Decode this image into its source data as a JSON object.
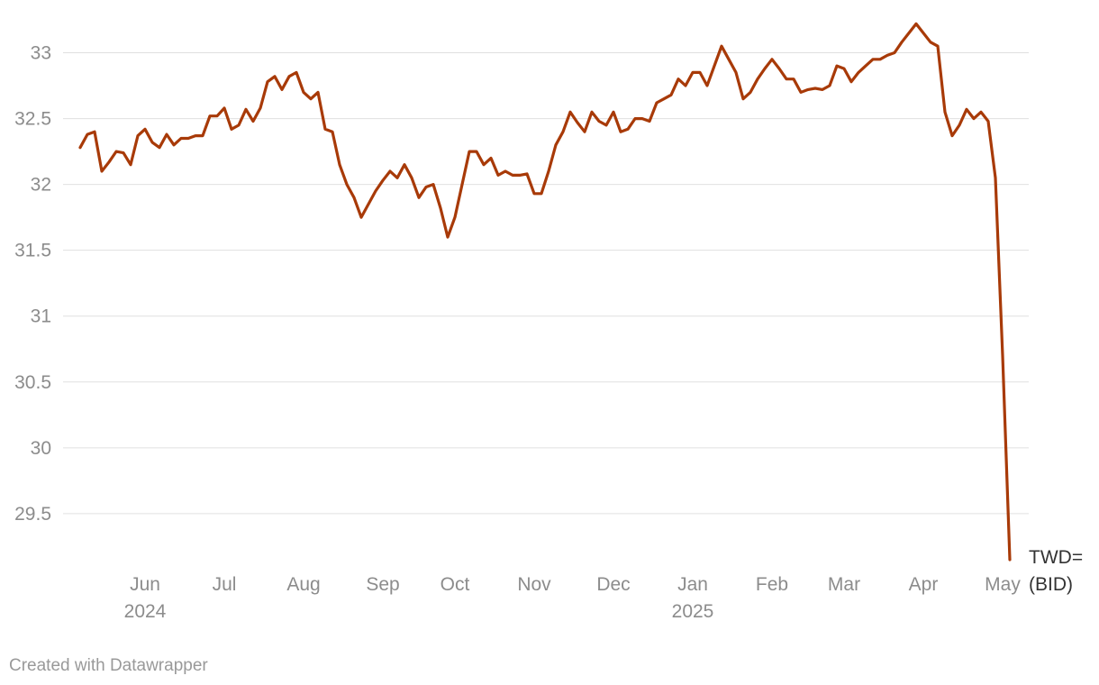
{
  "chart_data": {
    "type": "line",
    "credit": "Created with Datawrapper",
    "categories": [
      null,
      null,
      null,
      null,
      null,
      null,
      null,
      null,
      null,
      "Jun 2024",
      null,
      null,
      null,
      null,
      null,
      null,
      null,
      null,
      null,
      null,
      "Jul",
      null,
      null,
      null,
      null,
      null,
      null,
      null,
      null,
      null,
      null,
      "Aug",
      null,
      null,
      null,
      null,
      null,
      null,
      null,
      null,
      null,
      null,
      "Sep",
      null,
      null,
      null,
      null,
      null,
      null,
      null,
      null,
      null,
      "Oct",
      null,
      null,
      null,
      null,
      null,
      null,
      null,
      null,
      null,
      null,
      "Nov",
      null,
      null,
      null,
      null,
      null,
      null,
      null,
      null,
      null,
      null,
      "Dec",
      null,
      null,
      null,
      null,
      null,
      null,
      null,
      null,
      null,
      null,
      "Jan 2025",
      null,
      null,
      null,
      null,
      null,
      null,
      null,
      null,
      null,
      null,
      "Feb",
      null,
      null,
      null,
      null,
      null,
      null,
      null,
      null,
      null,
      "Mar",
      null,
      null,
      null,
      null,
      null,
      null,
      null,
      null,
      null,
      null,
      "Apr",
      null,
      null,
      null,
      null,
      null,
      null,
      null,
      null,
      null,
      null,
      "May",
      null
    ],
    "series": [
      {
        "name": "TWD= (BID)",
        "color": "#a83a08",
        "values": [
          32.28,
          32.38,
          32.4,
          32.1,
          32.17,
          32.25,
          32.24,
          32.15,
          32.37,
          32.42,
          32.32,
          32.28,
          32.38,
          32.3,
          32.35,
          32.35,
          32.37,
          32.37,
          32.52,
          32.52,
          32.58,
          32.42,
          32.45,
          32.57,
          32.48,
          32.58,
          32.78,
          32.82,
          32.72,
          32.82,
          32.85,
          32.7,
          32.65,
          32.7,
          32.42,
          32.4,
          32.15,
          32.0,
          31.9,
          31.75,
          31.85,
          31.95,
          32.03,
          32.1,
          32.05,
          32.15,
          32.05,
          31.9,
          31.98,
          32.0,
          31.82,
          31.6,
          31.75,
          32.0,
          32.25,
          32.25,
          32.15,
          32.2,
          32.07,
          32.1,
          32.07,
          32.07,
          32.08,
          31.93,
          31.93,
          32.1,
          32.3,
          32.4,
          32.55,
          32.47,
          32.4,
          32.55,
          32.48,
          32.45,
          32.55,
          32.4,
          32.42,
          32.5,
          32.5,
          32.48,
          32.62,
          32.65,
          32.68,
          32.8,
          32.75,
          32.85,
          32.85,
          32.75,
          32.9,
          33.05,
          32.95,
          32.85,
          32.65,
          32.7,
          32.8,
          32.88,
          32.95,
          32.88,
          32.8,
          32.8,
          32.7,
          32.72,
          32.73,
          32.72,
          32.75,
          32.9,
          32.88,
          32.78,
          32.85,
          32.9,
          32.95,
          32.95,
          32.98,
          33.0,
          33.08,
          33.15,
          33.22,
          33.15,
          33.08,
          33.05,
          32.55,
          32.37,
          32.45,
          32.57,
          32.5,
          32.55,
          32.48,
          32.05,
          30.7,
          29.15
        ]
      }
    ],
    "ylim": [
      29.15,
      33.25
    ],
    "yticks": [
      29.5,
      30,
      30.5,
      31,
      31.5,
      32,
      32.5,
      33
    ],
    "grid": true
  }
}
